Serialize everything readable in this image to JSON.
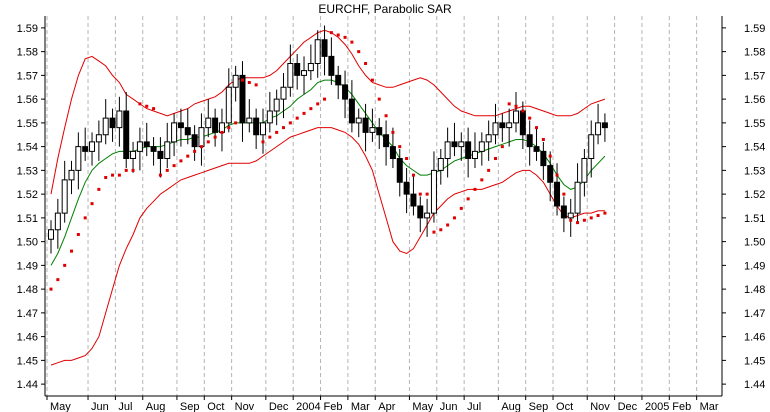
{
  "chart_data": {
    "type": "candlestick",
    "title": "EURCHF, Parabolic SAR",
    "xlabel": "",
    "ylabel": "",
    "ylim": [
      1.435,
      1.595
    ],
    "grid": "vertical dotted lines at month boundaries",
    "legend": "none",
    "y_ticks": [
      "1.59",
      "1.58",
      "1.57",
      "1.56",
      "1.55",
      "1.54",
      "1.53",
      "1.52",
      "1.51",
      "1.50",
      "1.49",
      "1.48",
      "1.47",
      "1.46",
      "1.45",
      "1.44"
    ],
    "x_ticks": [
      "May",
      "Jun",
      "Jul",
      "Aug",
      "Sep",
      "Oct",
      "Nov",
      "Dec",
      "2004",
      "Feb",
      "Mar",
      "Apr",
      "May",
      "Jun",
      "Jul",
      "Aug",
      "Sep",
      "Oct",
      "Nov",
      "Dec",
      "2005",
      "Feb",
      "Mar"
    ],
    "x_tick_weeks": [
      0,
      6,
      10,
      14,
      19,
      23,
      27,
      32,
      36,
      40,
      44,
      48,
      53,
      57,
      61,
      66,
      70,
      74,
      79,
      83,
      87,
      91,
      95
    ],
    "total_weeks": 99,
    "closes": [
      1.505,
      1.512,
      1.526,
      1.53,
      1.54,
      1.538,
      1.542,
      1.545,
      1.552,
      1.548,
      1.555,
      1.535,
      1.538,
      1.542,
      1.54,
      1.538,
      1.535,
      1.542,
      1.55,
      1.548,
      1.545,
      1.54,
      1.548,
      1.552,
      1.546,
      1.55,
      1.565,
      1.57,
      1.55,
      1.552,
      1.545,
      1.55,
      1.555,
      1.56,
      1.565,
      1.575,
      1.57,
      1.572,
      1.575,
      1.585,
      1.578,
      1.57,
      1.566,
      1.56,
      1.55,
      1.552,
      1.546,
      1.548,
      1.545,
      1.54,
      1.535,
      1.525,
      1.52,
      1.515,
      1.51,
      1.512,
      1.53,
      1.535,
      1.542,
      1.54,
      1.542,
      1.535,
      1.538,
      1.542,
      1.545,
      1.55,
      1.548,
      1.55,
      1.555,
      1.545,
      1.54,
      1.538,
      1.532,
      1.525,
      1.515,
      1.51,
      1.512,
      1.525,
      1.535,
      1.545,
      1.55,
      1.548
    ],
    "series": [
      {
        "name": "",
        "color": "#008000",
        "role": "middle band",
        "values": [
          1.49,
          1.495,
          1.502,
          1.51,
          1.518,
          1.525,
          1.53,
          1.533,
          1.535,
          1.537,
          1.538,
          1.538,
          1.538,
          1.539,
          1.54,
          1.54,
          1.54,
          1.541,
          1.542,
          1.543,
          1.543,
          1.544,
          1.544,
          1.545,
          1.546,
          1.547,
          1.549,
          1.55,
          1.55,
          1.55,
          1.55,
          1.55,
          1.552,
          1.553,
          1.555,
          1.557,
          1.56,
          1.562,
          1.564,
          1.567,
          1.568,
          1.568,
          1.567,
          1.565,
          1.562,
          1.558,
          1.554,
          1.55,
          1.546,
          1.543,
          1.54,
          1.535,
          1.532,
          1.53,
          1.528,
          1.528,
          1.529,
          1.53,
          1.532,
          1.534,
          1.535,
          1.536,
          1.537,
          1.538,
          1.539,
          1.54,
          1.541,
          1.542,
          1.543,
          1.543,
          1.542,
          1.54,
          1.537,
          1.533,
          1.528,
          1.524,
          1.522,
          1.523,
          1.526,
          1.53,
          1.533,
          1.536
        ]
      },
      {
        "name": "",
        "color": "#e00000",
        "role": "upper band",
        "values": [
          1.52,
          1.535,
          1.548,
          1.56,
          1.57,
          1.577,
          1.578,
          1.576,
          1.574,
          1.57,
          1.567,
          1.562,
          1.56,
          1.558,
          1.556,
          1.555,
          1.554,
          1.553,
          1.554,
          1.555,
          1.556,
          1.558,
          1.559,
          1.56,
          1.561,
          1.563,
          1.566,
          1.568,
          1.569,
          1.569,
          1.569,
          1.569,
          1.57,
          1.572,
          1.575,
          1.578,
          1.581,
          1.584,
          1.586,
          1.588,
          1.589,
          1.588,
          1.586,
          1.583,
          1.579,
          1.574,
          1.57,
          1.567,
          1.566,
          1.565,
          1.565,
          1.566,
          1.567,
          1.568,
          1.569,
          1.568,
          1.566,
          1.563,
          1.56,
          1.557,
          1.555,
          1.554,
          1.553,
          1.553,
          1.553,
          1.553,
          1.554,
          1.555,
          1.556,
          1.557,
          1.557,
          1.556,
          1.555,
          1.554,
          1.553,
          1.553,
          1.553,
          1.554,
          1.556,
          1.558,
          1.559,
          1.56
        ]
      },
      {
        "name": "",
        "color": "#e00000",
        "role": "lower band",
        "values": [
          1.448,
          1.449,
          1.45,
          1.45,
          1.451,
          1.452,
          1.455,
          1.46,
          1.47,
          1.48,
          1.49,
          1.497,
          1.503,
          1.51,
          1.514,
          1.517,
          1.52,
          1.522,
          1.524,
          1.526,
          1.527,
          1.528,
          1.529,
          1.53,
          1.531,
          1.532,
          1.533,
          1.533,
          1.533,
          1.533,
          1.534,
          1.536,
          1.538,
          1.54,
          1.542,
          1.544,
          1.545,
          1.546,
          1.547,
          1.548,
          1.548,
          1.548,
          1.547,
          1.546,
          1.544,
          1.541,
          1.536,
          1.53,
          1.52,
          1.51,
          1.5,
          1.496,
          1.495,
          1.497,
          1.502,
          1.507,
          1.512,
          1.515,
          1.518,
          1.52,
          1.521,
          1.522,
          1.522,
          1.522,
          1.523,
          1.524,
          1.525,
          1.527,
          1.529,
          1.53,
          1.53,
          1.528,
          1.525,
          1.52,
          1.515,
          1.511,
          1.51,
          1.511,
          1.512,
          1.512,
          1.513,
          1.513
        ]
      },
      {
        "name": "",
        "color": "#e00000",
        "role": "parabolic SAR",
        "values": [
          1.48,
          1.484,
          1.49,
          1.496,
          1.503,
          1.51,
          1.516,
          1.522,
          1.527,
          1.528,
          1.528,
          1.53,
          1.53,
          1.558,
          1.557,
          1.556,
          1.528,
          1.53,
          1.532,
          1.534,
          1.536,
          1.538,
          1.54,
          1.542,
          1.544,
          1.546,
          1.548,
          1.55,
          1.568,
          1.567,
          1.566,
          1.542,
          1.544,
          1.546,
          1.548,
          1.55,
          1.552,
          1.554,
          1.556,
          1.558,
          1.56,
          1.588,
          1.587,
          1.586,
          1.584,
          1.58,
          1.575,
          1.568,
          1.56,
          1.553,
          1.546,
          1.54,
          1.535,
          1.528,
          1.52,
          1.52,
          1.504,
          1.505,
          1.507,
          1.51,
          1.514,
          1.518,
          1.522,
          1.526,
          1.53,
          1.535,
          1.54,
          1.558,
          1.557,
          1.555,
          1.552,
          1.548,
          1.543,
          1.536,
          1.528,
          1.52,
          1.509,
          1.508,
          1.509,
          1.51,
          1.511,
          1.512
        ]
      }
    ]
  }
}
